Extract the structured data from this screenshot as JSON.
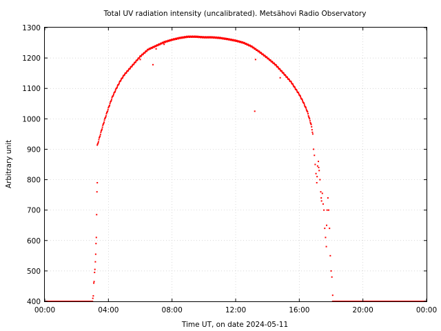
{
  "chart_data": {
    "type": "scatter",
    "title": "Total UV radiation intensity (uncalibrated). Metsähovi Radio Observatory",
    "xlabel": "Time UT, on date 2024-05-11",
    "ylabel": "Arbitrary unit",
    "xlim": [
      0,
      24
    ],
    "ylim": [
      400,
      1300
    ],
    "x_tick_labels": [
      "00:00",
      "04:00",
      "08:00",
      "12:00",
      "16:00",
      "20:00",
      "00:00"
    ],
    "y_tick_labels": [
      "400",
      "500",
      "600",
      "700",
      "800",
      "900",
      "1000",
      "1100",
      "1200",
      "1300"
    ],
    "grid": true,
    "legend": "none",
    "marker_color": "#ff0000",
    "series": [
      {
        "curve_hours": [
          3.3,
          3.5,
          3.75,
          4.0,
          4.25,
          4.5,
          4.75,
          5.0,
          5.5,
          6.0,
          6.5,
          7.0,
          7.5,
          8.0,
          8.5,
          9.0,
          9.5,
          10.0,
          10.5,
          11.0,
          11.5,
          12.0,
          12.5,
          13.0,
          13.5,
          14.0,
          14.5,
          15.0,
          15.5,
          16.0,
          16.25,
          16.5,
          16.75,
          16.85
        ],
        "curve_values": [
          912,
          950,
          995,
          1035,
          1072,
          1100,
          1125,
          1145,
          1175,
          1205,
          1228,
          1240,
          1252,
          1260,
          1266,
          1270,
          1270,
          1268,
          1268,
          1266,
          1262,
          1257,
          1250,
          1238,
          1220,
          1200,
          1178,
          1150,
          1120,
          1080,
          1055,
          1025,
          980,
          950
        ],
        "rise": {
          "x": [
            3.02,
            3.05,
            3.08,
            3.1,
            3.13,
            3.15,
            3.18,
            3.2,
            3.22,
            3.24,
            3.26,
            3.28,
            3.3
          ],
          "y": [
            410,
            418,
            460,
            465,
            495,
            505,
            530,
            555,
            590,
            610,
            685,
            760,
            790
          ]
        },
        "evening_scatter": {
          "x": [
            16.9,
            16.95,
            17.0,
            17.05,
            17.1,
            17.12,
            17.15,
            17.2,
            17.22,
            17.25,
            17.3,
            17.35,
            17.38,
            17.4,
            17.45,
            17.5,
            17.55,
            17.6,
            17.65,
            17.7,
            17.72,
            17.75,
            17.8,
            17.85,
            17.9,
            17.95,
            18.0,
            18.05,
            18.1
          ],
          "y": [
            900,
            880,
            850,
            820,
            790,
            810,
            845,
            860,
            840,
            830,
            800,
            760,
            740,
            730,
            755,
            720,
            700,
            640,
            610,
            580,
            650,
            700,
            740,
            700,
            640,
            550,
            500,
            480,
            420
          ]
        },
        "outliers": {
          "x": [
            6.0,
            6.8,
            7.0,
            7.5,
            13.2,
            13.25,
            14.8
          ],
          "y": [
            1195,
            1178,
            1230,
            1245,
            1025,
            1195,
            1135
          ]
        },
        "baseline_value": 400,
        "baseline_ranges": [
          [
            0,
            3.0
          ],
          [
            18.1,
            24
          ]
        ]
      }
    ]
  }
}
